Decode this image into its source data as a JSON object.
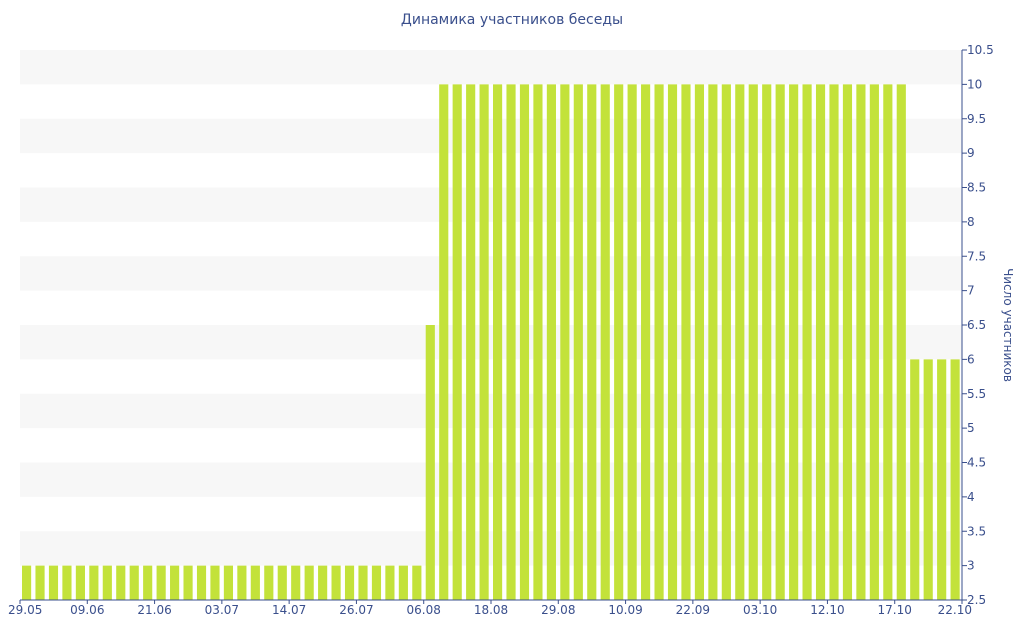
{
  "chart_data": {
    "type": "bar",
    "title": "Динамика участников беседы",
    "xlabel": "",
    "ylabel": "Число участников",
    "ylim": [
      2.5,
      10.5
    ],
    "yticks": [
      2.5,
      3,
      3.5,
      4,
      4.5,
      5,
      5.5,
      6,
      6.5,
      7,
      7.5,
      8,
      8.5,
      9,
      9.5,
      10,
      10.5
    ],
    "grid": "alternating horizontal bands",
    "y_axis_position": "right",
    "colors": {
      "bar": "#c3e23a",
      "band": "#f7f7f7",
      "axis": "#3a4f8c"
    },
    "xtick_labels": [
      "29.05",
      "09.06",
      "21.06",
      "03.07",
      "14.07",
      "26.07",
      "06.08",
      "18.08",
      "29.08",
      "10.09",
      "22.09",
      "03.10",
      "12.10",
      "17.10",
      "22.10"
    ],
    "values": [
      3,
      3,
      3,
      3,
      3,
      3,
      3,
      3,
      3,
      3,
      3,
      3,
      3,
      3,
      3,
      3,
      3,
      3,
      3,
      3,
      3,
      3,
      3,
      3,
      3,
      3,
      3,
      3,
      3,
      3,
      6.5,
      10,
      10,
      10,
      10,
      10,
      10,
      10,
      10,
      10,
      10,
      10,
      10,
      10,
      10,
      10,
      10,
      10,
      10,
      10,
      10,
      10,
      10,
      10,
      10,
      10,
      10,
      10,
      10,
      10,
      10,
      10,
      10,
      10,
      10,
      10,
      6,
      6,
      6,
      6
    ]
  }
}
